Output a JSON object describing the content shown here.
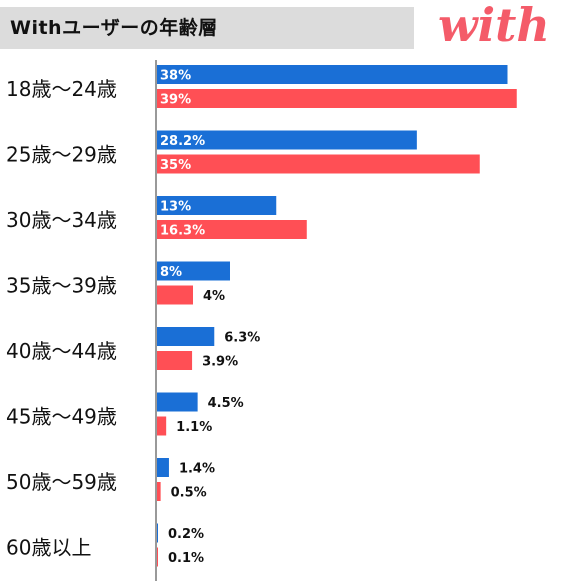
{
  "header": {
    "title": "Withユーザーの年齢層",
    "logo_text": "with"
  },
  "colors": {
    "series_a": "#1a6fd6",
    "series_b": "#ff4f55",
    "axis": "#999999",
    "title_bg": "#dcdcdc",
    "logo": "#f45b69"
  },
  "chart_data": {
    "type": "bar",
    "orientation": "horizontal",
    "categories": [
      "18歳〜24歳",
      "25歳〜29歳",
      "30歳〜34歳",
      "35歳〜39歳",
      "40歳〜44歳",
      "45歳〜49歳",
      "50歳〜59歳",
      "60歳以上"
    ],
    "series": [
      {
        "values": [
          38,
          28.2,
          13,
          8,
          6.3,
          4.5,
          1.4,
          0.2
        ],
        "labels": [
          "38%",
          "28.2%",
          "13%",
          "8%",
          "6.3%",
          "4.5%",
          "1.4%",
          "0.2%"
        ]
      },
      {
        "values": [
          39,
          35,
          16.3,
          4,
          3.9,
          1.1,
          0.5,
          0.1
        ],
        "labels": [
          "39%",
          "35%",
          "16.3%",
          "4%",
          "3.9%",
          "1.1%",
          "0.5%",
          "0.1%"
        ]
      }
    ],
    "xlim": [
      0,
      40
    ],
    "unit": "%",
    "grid": false,
    "legend": "none"
  }
}
